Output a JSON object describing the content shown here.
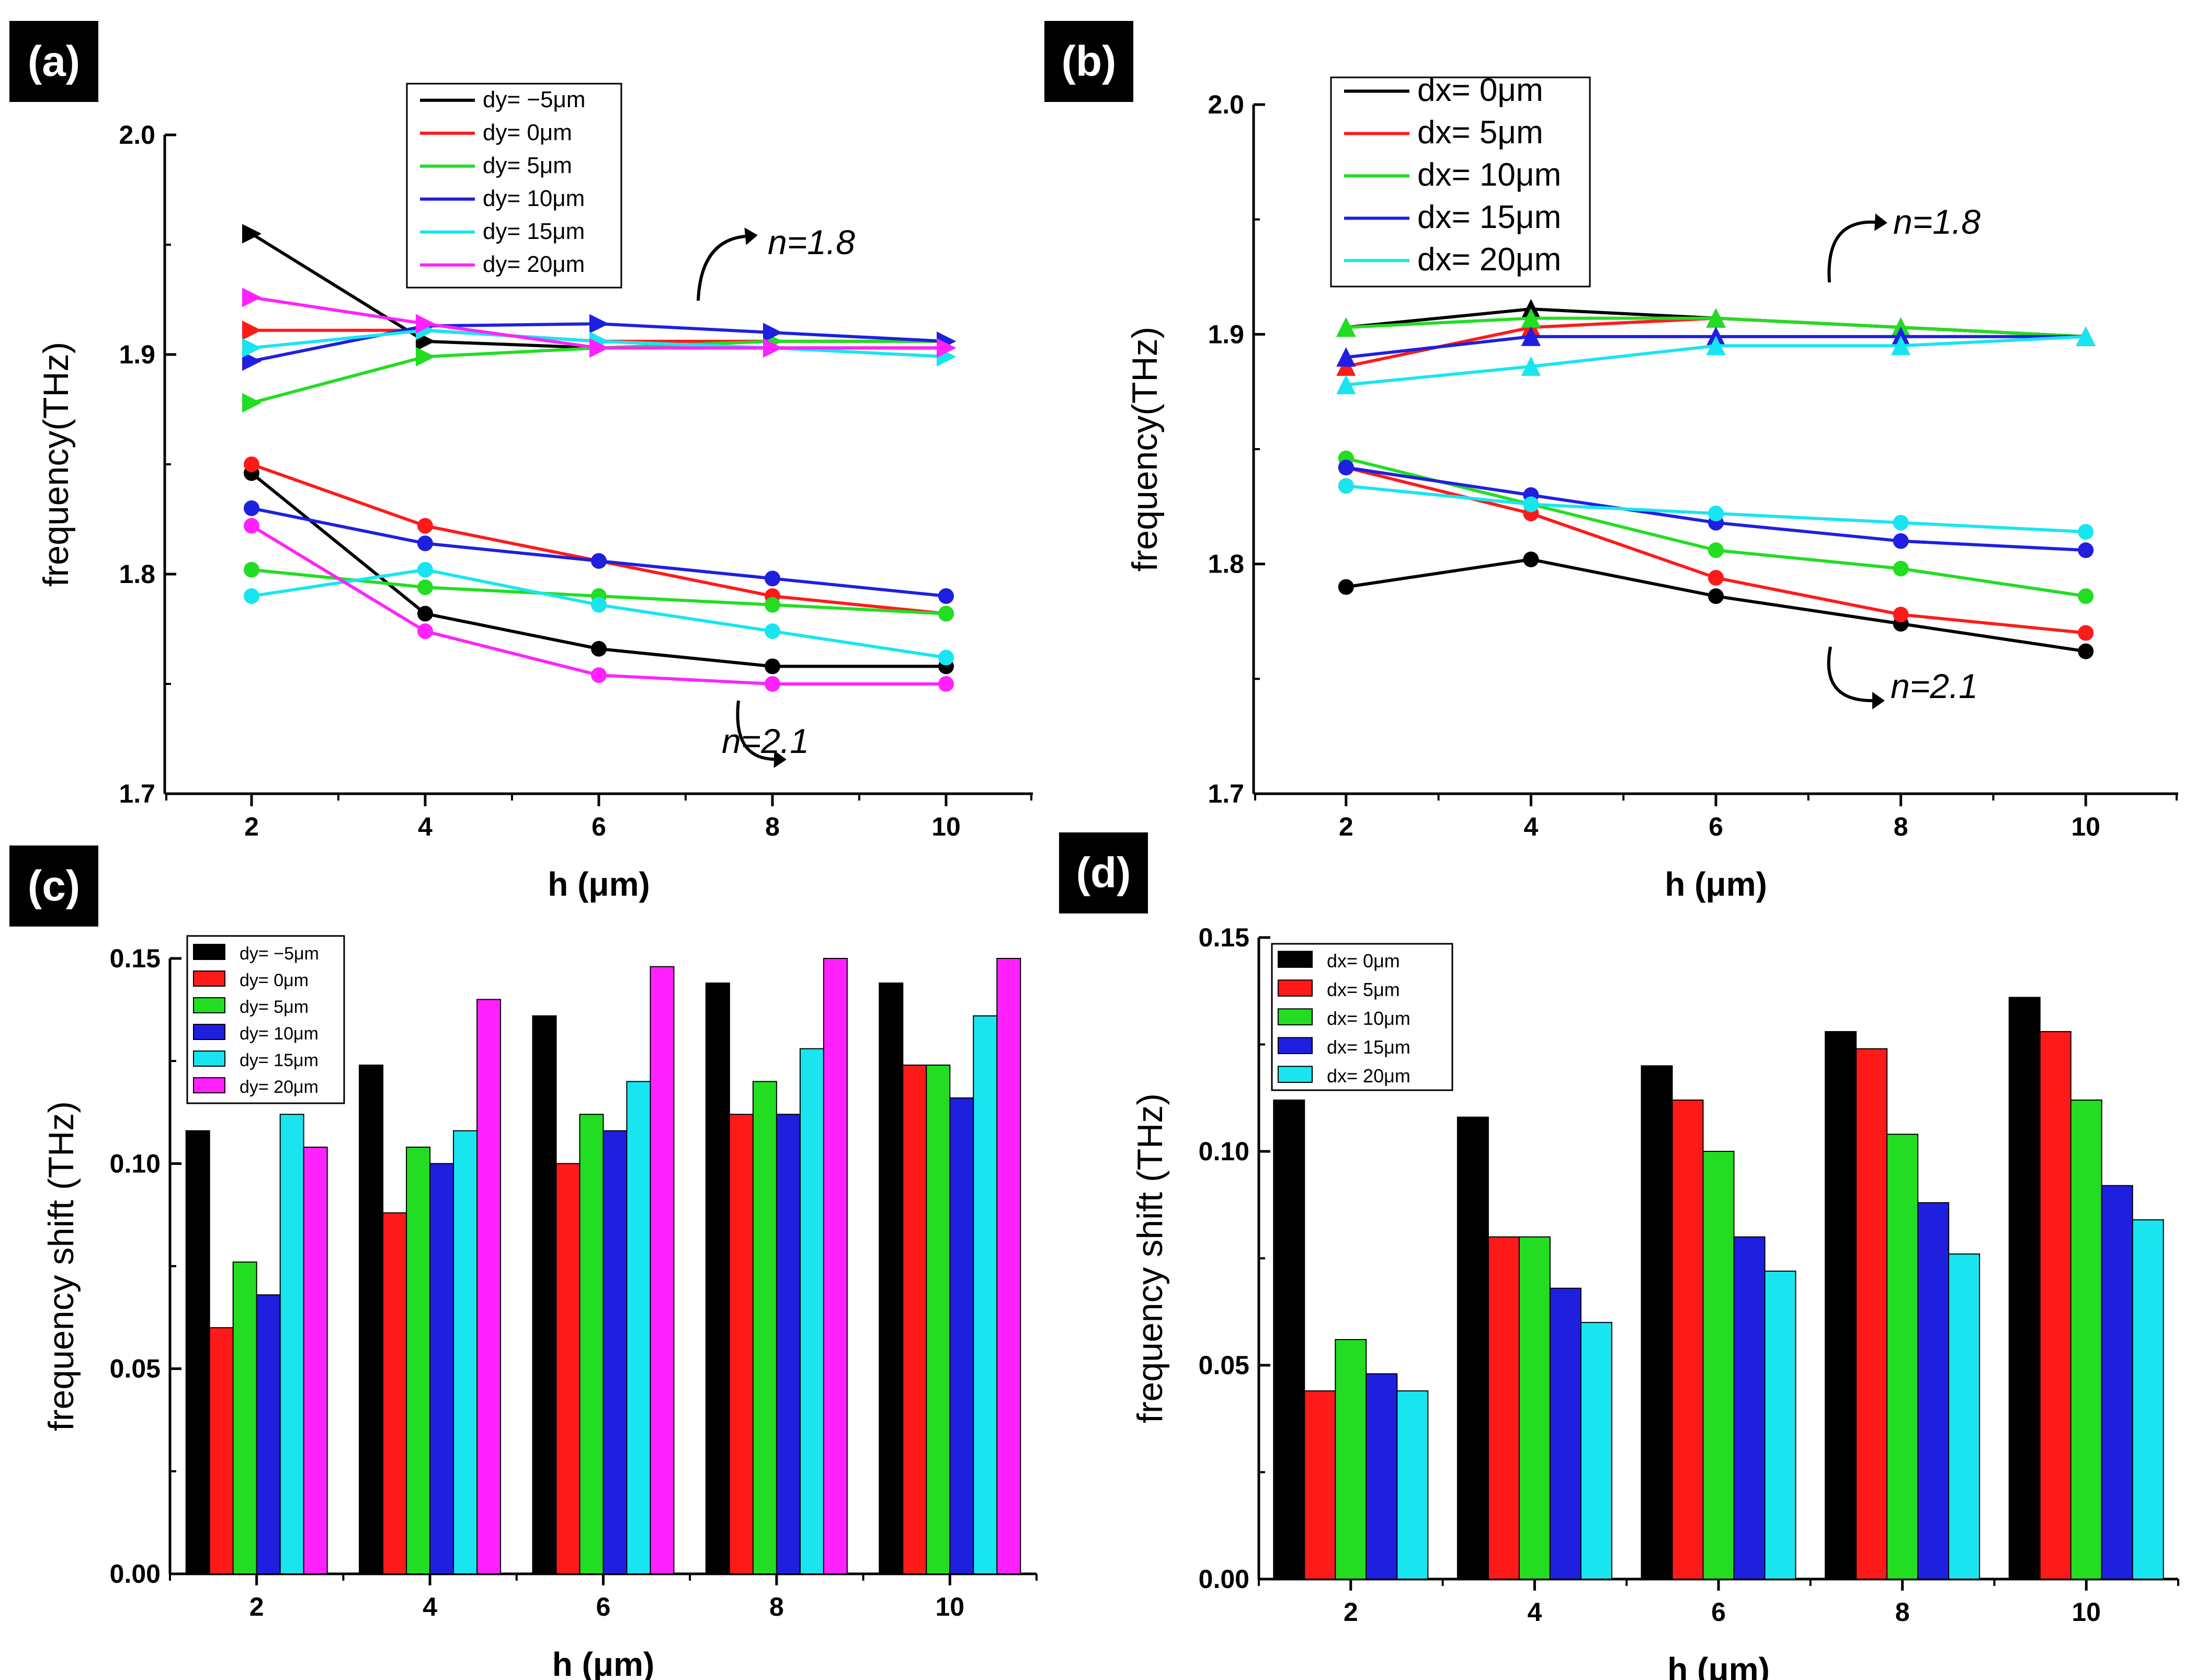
{
  "chart_data": [
    {
      "panel": "(a)",
      "type": "line",
      "xlabel": "h (μm)",
      "ylabel": "frequency(THz)",
      "xlim": [
        1,
        11
      ],
      "ylim": [
        1.7,
        2.0
      ],
      "xticks": [
        2,
        4,
        6,
        8,
        10
      ],
      "yticks": [
        1.7,
        1.8,
        1.9,
        2.0
      ],
      "ytick_labels": [
        "1.7",
        "1.8",
        "1.9",
        "2.0"
      ],
      "x": [
        2,
        4,
        6,
        8,
        10
      ],
      "legend": [
        "dy= −5μm",
        "dy= 0μm",
        "dy= 5μm",
        "dy= 10μm",
        "dy= 15μm",
        "dy= 20μm"
      ],
      "colors": [
        "#000000",
        "#ff1a1a",
        "#22dd22",
        "#1f1fe0",
        "#19e5f0",
        "#ff22ff"
      ],
      "series_n18": [
        [
          1.955,
          1.906,
          1.903,
          1.903,
          1.903
        ],
        [
          1.911,
          1.911,
          1.906,
          1.906,
          1.906
        ],
        [
          1.878,
          1.899,
          1.903,
          1.906,
          1.906
        ],
        [
          1.897,
          1.913,
          1.914,
          1.91,
          1.906
        ],
        [
          1.903,
          1.911,
          1.906,
          1.903,
          1.899
        ],
        [
          1.926,
          1.914,
          1.903,
          1.903,
          1.903
        ]
      ],
      "series_n21": [
        [
          1.846,
          1.782,
          1.766,
          1.758,
          1.758
        ],
        [
          1.85,
          1.822,
          1.806,
          1.79,
          1.782
        ],
        [
          1.802,
          1.794,
          1.79,
          1.786,
          1.782
        ],
        [
          1.83,
          1.814,
          1.806,
          1.798,
          1.79
        ],
        [
          1.79,
          1.802,
          1.786,
          1.774,
          1.762
        ],
        [
          1.822,
          1.774,
          1.754,
          1.75,
          1.75
        ]
      ],
      "annotations": [
        "n=1.8",
        "n=2.1"
      ]
    },
    {
      "panel": "(b)",
      "type": "line",
      "xlabel": "h (μm)",
      "ylabel": "frequency(THz)",
      "xlim": [
        1,
        11
      ],
      "ylim": [
        1.7,
        2.0
      ],
      "xticks": [
        2,
        4,
        6,
        8,
        10
      ],
      "yticks": [
        1.7,
        1.8,
        1.9,
        2.0
      ],
      "ytick_labels": [
        "1.7",
        "1.8",
        "1.9",
        "2.0"
      ],
      "x": [
        2,
        4,
        6,
        8,
        10
      ],
      "legend": [
        "dx= 0μm",
        "dx= 5μm",
        "dx= 10μm",
        "dx= 15μm",
        "dx= 20μm"
      ],
      "colors": [
        "#000000",
        "#ff1a1a",
        "#22dd22",
        "#1f1fe0",
        "#19e5f0"
      ],
      "series_n18": [
        [
          1.903,
          1.911,
          1.907,
          1.903,
          1.899
        ],
        [
          1.886,
          1.903,
          1.907,
          1.903,
          1.899
        ],
        [
          1.903,
          1.907,
          1.907,
          1.903,
          1.899
        ],
        [
          1.89,
          1.899,
          1.899,
          1.899,
          1.899
        ],
        [
          1.878,
          1.886,
          1.895,
          1.895,
          1.899
        ]
      ],
      "series_n21": [
        [
          1.79,
          1.802,
          1.786,
          1.774,
          1.762
        ],
        [
          1.842,
          1.822,
          1.794,
          1.778,
          1.77
        ],
        [
          1.846,
          1.826,
          1.806,
          1.798,
          1.786
        ],
        [
          1.842,
          1.83,
          1.818,
          1.81,
          1.806
        ],
        [
          1.834,
          1.826,
          1.822,
          1.818,
          1.814
        ]
      ],
      "annotations": [
        "n=1.8",
        "n=2.1"
      ]
    },
    {
      "panel": "(c)",
      "type": "bar",
      "xlabel": "h (μm)",
      "ylabel": "frequency shift (THz)",
      "categories": [
        "2",
        "4",
        "6",
        "8",
        "10"
      ],
      "ylim": [
        0,
        0.15
      ],
      "yticks": [
        0,
        0.05,
        0.1,
        0.15
      ],
      "ytick_labels": [
        "0.00",
        "0.05",
        "0.10",
        "0.15"
      ],
      "legend": [
        "dy= −5μm",
        "dy= 0μm",
        "dy= 5μm",
        "dy= 10μm",
        "dy= 15μm",
        "dy= 20μm"
      ],
      "colors": [
        "#000000",
        "#ff1a1a",
        "#22dd22",
        "#1f1fe0",
        "#19e5f0",
        "#ff22ff"
      ],
      "series": [
        [
          0.108,
          0.124,
          0.136,
          0.144,
          0.144
        ],
        [
          0.06,
          0.088,
          0.1,
          0.112,
          0.124
        ],
        [
          0.076,
          0.104,
          0.112,
          0.12,
          0.124
        ],
        [
          0.068,
          0.1,
          0.108,
          0.112,
          0.116
        ],
        [
          0.112,
          0.108,
          0.12,
          0.128,
          0.136
        ],
        [
          0.104,
          0.14,
          0.148,
          0.152,
          0.152
        ]
      ]
    },
    {
      "panel": "(d)",
      "type": "bar",
      "xlabel": "h (μm)",
      "ylabel": "frequency shift (THz)",
      "categories": [
        "2",
        "4",
        "6",
        "8",
        "10"
      ],
      "ylim": [
        0,
        0.15
      ],
      "yticks": [
        0,
        0.05,
        0.1,
        0.15
      ],
      "ytick_labels": [
        "0.00",
        "0.05",
        "0.10",
        "0.15"
      ],
      "legend": [
        "dx= 0μm",
        "dx= 5μm",
        "dx= 10μm",
        "dx= 15μm",
        "dx= 20μm"
      ],
      "colors": [
        "#000000",
        "#ff1a1a",
        "#22dd22",
        "#1f1fe0",
        "#19e5f0"
      ],
      "series": [
        [
          0.112,
          0.108,
          0.12,
          0.128,
          0.136
        ],
        [
          0.044,
          0.08,
          0.112,
          0.124,
          0.128
        ],
        [
          0.056,
          0.08,
          0.1,
          0.104,
          0.112
        ],
        [
          0.048,
          0.068,
          0.08,
          0.088,
          0.092
        ],
        [
          0.044,
          0.06,
          0.072,
          0.076,
          0.084
        ]
      ]
    }
  ]
}
